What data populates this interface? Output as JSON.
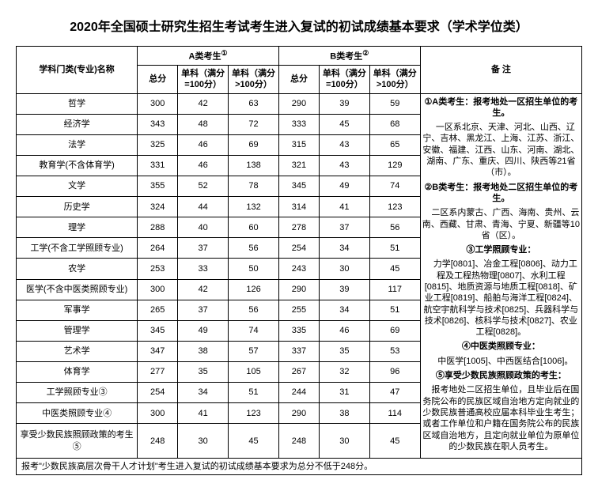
{
  "title": "2020年全国硕士研究生招生考试考生进入复试的初试成绩基本要求（学术学位类）",
  "headers": {
    "subject": "学科门类(专业)名称",
    "catA": "A类考生",
    "catB": "B类考生",
    "notes": "备    注",
    "total": "总分",
    "sub100": "单科（满分=100分）",
    "subGt100": "单科（满分>100分）",
    "supA": "①",
    "supB": "②"
  },
  "rows": [
    {
      "name": "哲学",
      "a": [
        300,
        42,
        63
      ],
      "b": [
        290,
        39,
        59
      ]
    },
    {
      "name": "经济学",
      "a": [
        343,
        48,
        72
      ],
      "b": [
        333,
        45,
        68
      ]
    },
    {
      "name": "法学",
      "a": [
        325,
        46,
        69
      ],
      "b": [
        315,
        43,
        65
      ]
    },
    {
      "name": "教育学(不含体育学)",
      "a": [
        331,
        46,
        138
      ],
      "b": [
        321,
        43,
        129
      ]
    },
    {
      "name": "文学",
      "a": [
        355,
        52,
        78
      ],
      "b": [
        345,
        49,
        74
      ]
    },
    {
      "name": "历史学",
      "a": [
        324,
        44,
        132
      ],
      "b": [
        314,
        41,
        123
      ]
    },
    {
      "name": "理学",
      "a": [
        288,
        40,
        60
      ],
      "b": [
        278,
        37,
        56
      ]
    },
    {
      "name": "工学(不含工学照顾专业)",
      "a": [
        264,
        37,
        56
      ],
      "b": [
        254,
        34,
        51
      ]
    },
    {
      "name": "农学",
      "a": [
        253,
        33,
        50
      ],
      "b": [
        243,
        30,
        45
      ]
    },
    {
      "name": "医学(不含中医类照顾专业)",
      "a": [
        300,
        42,
        126
      ],
      "b": [
        290,
        39,
        117
      ]
    },
    {
      "name": "军事学",
      "a": [
        265,
        37,
        56
      ],
      "b": [
        255,
        34,
        51
      ]
    },
    {
      "name": "管理学",
      "a": [
        345,
        49,
        74
      ],
      "b": [
        335,
        46,
        69
      ]
    },
    {
      "name": "艺术学",
      "a": [
        347,
        38,
        57
      ],
      "b": [
        337,
        35,
        53
      ]
    },
    {
      "name": "体育学",
      "a": [
        277,
        35,
        105
      ],
      "b": [
        267,
        32,
        96
      ]
    },
    {
      "name": "工学照顾专业③",
      "a": [
        254,
        34,
        51
      ],
      "b": [
        244,
        31,
        47
      ]
    },
    {
      "name": "中医类照顾专业④",
      "a": [
        300,
        41,
        123
      ],
      "b": [
        290,
        38,
        114
      ]
    },
    {
      "name": "享受少数民族照顾政策的考生⑤",
      "a": [
        248,
        30,
        45
      ],
      "b": [
        248,
        30,
        45
      ]
    }
  ],
  "footnote": "报考\"少数民族高层次骨干人才计划\"考生进入复试的初试成绩基本要求为总分不低于248分。",
  "notes": {
    "n1": "①A类考生：报考地处一区招生单位的考生。",
    "n1b": "一区系北京、天津、河北、山西、辽宁、吉林、黑龙江、上海、江苏、浙江、安徽、福建、江西、山东、河南、湖北、湖南、广东、重庆、四川、陕西等21省（市）。",
    "n2": "②B类考生：报考地处二区招生单位的考生。",
    "n2b": "二区系内蒙古、广西、海南、贵州、云南、西藏、甘肃、青海、宁夏、新疆等10省（区）。",
    "n3": "③工学照顾专业：",
    "n3b": "力学[0801]、冶金工程[0806]、动力工程及工程热物理[0807]、水利工程[0815]、地质资源与地质工程[0818]、矿业工程[0819]、船舶与海洋工程[0824]、航空宇航科学与技术[0825]、兵器科学与技术[0826]、核科学与技术[0827]、农业工程[0828]。",
    "n4": "④中医类照顾专业：",
    "n4b": "中医学[1005]、中西医结合[1006]。",
    "n5": "⑤享受少数民族照顾政策的考生：",
    "n5b": "报考地处二区招生单位，且毕业后在国务院公布的民族区域自治地方定向就业的少数民族普通高校应届本科毕业生考生；或者工作单位和户籍在国务院公布的民族区域自治地方，且定向就业单位为原单位的少数民族在职人员考生。"
  }
}
